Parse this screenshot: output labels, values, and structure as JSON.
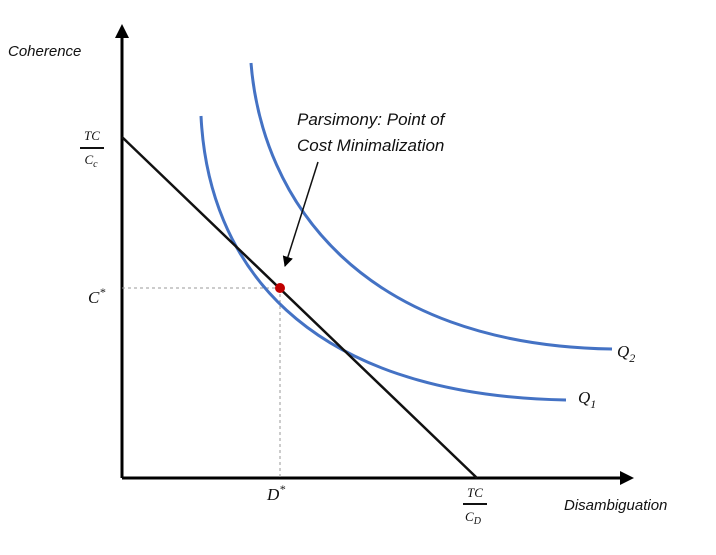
{
  "axes": {
    "y_label": "Coherence",
    "x_label": "Disambiguation"
  },
  "budget_line": {
    "y_intercept": {
      "numerator": "TC",
      "denominator_base": "C",
      "denominator_sub": "c"
    },
    "x_intercept": {
      "numerator": "TC",
      "denominator_base": "C",
      "denominator_sub": "D"
    }
  },
  "optimum": {
    "c_label": "C",
    "c_sup": "*",
    "d_label": "D",
    "d_sup": "*",
    "point_color": "#c00000"
  },
  "curves": [
    {
      "name_base": "Q",
      "name_sub": "1",
      "color": "#4472c4"
    },
    {
      "name_base": "Q",
      "name_sub": "2",
      "color": "#4472c4"
    }
  ],
  "annotation": {
    "line1": "Parsimony: Point of",
    "line2": "Cost Minimalization"
  }
}
